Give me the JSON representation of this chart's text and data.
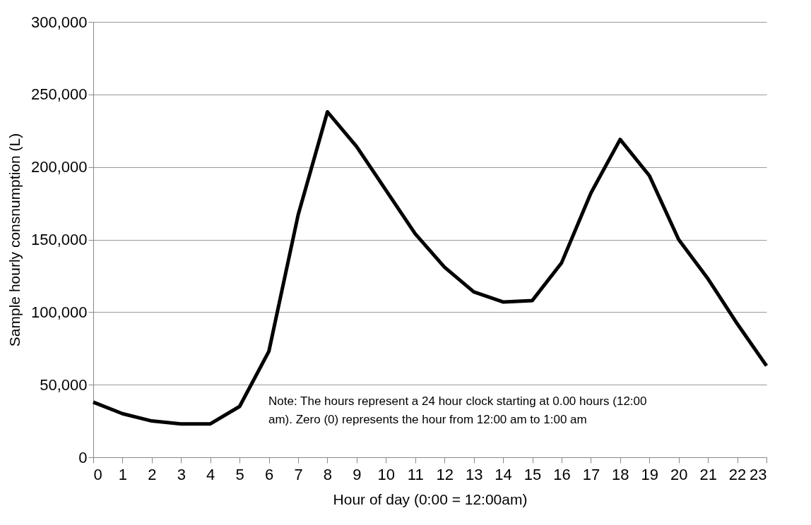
{
  "chart_data": {
    "type": "line",
    "xlabel": "Hour of day (0:00 = 12:00am)",
    "ylabel": "Sample hourly consnumption (L)",
    "x": [
      0,
      1,
      2,
      3,
      4,
      5,
      6,
      7,
      8,
      9,
      10,
      11,
      12,
      13,
      14,
      15,
      16,
      17,
      18,
      19,
      20,
      21,
      22,
      23
    ],
    "series": [
      {
        "color": "#000000",
        "values": [
          38000,
          30000,
          25000,
          23000,
          23000,
          35000,
          73000,
          167000,
          238000,
          214000,
          184000,
          154000,
          131000,
          114000,
          107000,
          108000,
          134000,
          182000,
          219000,
          194000,
          150000,
          123000,
          92000,
          63000
        ]
      }
    ],
    "xlim": [
      0,
      23
    ],
    "xticks": [
      0,
      1,
      2,
      3,
      4,
      5,
      6,
      7,
      8,
      9,
      10,
      11,
      12,
      13,
      14,
      15,
      16,
      17,
      18,
      19,
      20,
      21,
      22,
      23
    ],
    "ylim": [
      0,
      300000
    ],
    "yticks": [
      0,
      {
        "value": 50000,
        "label": "50,000"
      },
      {
        "value": 100000,
        "label": "100,000"
      },
      {
        "value": 150000,
        "label": "150,000"
      },
      {
        "value": 200000,
        "label": "200,000"
      },
      {
        "value": 250000,
        "label": "250,000"
      },
      {
        "value": 300000,
        "label": "300,000"
      }
    ],
    "grid": "y",
    "marker": "none",
    "line_style": "solid",
    "annotations": [
      "Note: The hours represent a 24 hour clock starting at 0.00 hours (12:00 am). Zero (0) represents the hour from 12:00 am to 1:00 am"
    ]
  }
}
